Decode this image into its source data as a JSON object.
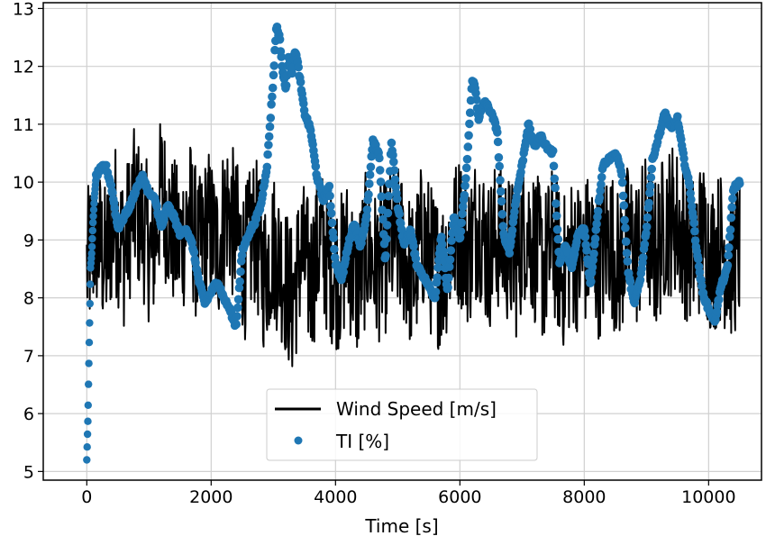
{
  "chart_data": {
    "type": "line",
    "title": "",
    "xlabel": "Time [s]",
    "ylabel": "",
    "xlim": [
      -700,
      10850
    ],
    "ylim": [
      4.85,
      13.1
    ],
    "xticks": [
      0,
      2000,
      4000,
      6000,
      8000,
      10000
    ],
    "yticks": [
      5,
      6,
      7,
      8,
      9,
      10,
      11,
      12,
      13
    ],
    "grid": true,
    "legend_position": "bottom-center",
    "series": [
      {
        "name": "Wind Speed [m/s]",
        "kind": "line",
        "color": "#000000",
        "x": [
          0,
          150,
          300,
          450,
          600,
          750,
          900,
          1050,
          1200,
          1350,
          1500,
          1650,
          1800,
          1950,
          2100,
          2250,
          2400,
          2550,
          2700,
          2850,
          3000,
          3150,
          3300,
          3450,
          3600,
          3750,
          3900,
          4050,
          4200,
          4350,
          4500,
          4650,
          4800,
          4950,
          5100,
          5250,
          5400,
          5550,
          5700,
          5850,
          6000,
          6150,
          6300,
          6450,
          6600,
          6750,
          6900,
          7050,
          7200,
          7350,
          7500,
          7650,
          7800,
          7950,
          8100,
          8250,
          8400,
          8550,
          8700,
          8850,
          9000,
          9150,
          9300,
          9450,
          9600,
          9750,
          9900,
          10050,
          10200,
          10350,
          10500
        ],
        "y": [
          8.5,
          9.1,
          8.6,
          9.4,
          8.8,
          9.6,
          9.3,
          8.7,
          9.9,
          9.2,
          8.9,
          9.5,
          8.7,
          9.3,
          8.8,
          9.6,
          9.1,
          8.6,
          9.2,
          8.4,
          8.9,
          8.5,
          7.9,
          8.8,
          8.3,
          9.0,
          8.6,
          8.4,
          8.8,
          8.2,
          8.9,
          8.5,
          8.7,
          9.0,
          8.8,
          8.3,
          9.1,
          8.6,
          8.4,
          8.9,
          9.2,
          8.8,
          9.4,
          8.7,
          9.1,
          8.9,
          8.6,
          9.3,
          8.9,
          8.5,
          9.0,
          8.4,
          8.8,
          8.7,
          8.9,
          8.6,
          9.1,
          8.5,
          9.0,
          8.8,
          9.2,
          8.7,
          9.3,
          9.4,
          9.0,
          8.8,
          9.1,
          8.7,
          8.9,
          8.6,
          8.8
        ],
        "noise_amplitude": 1.35,
        "range": [
          5.95,
          12.3
        ]
      },
      {
        "name": "TI [%]",
        "kind": "scatter",
        "color": "#1f77b4",
        "x": [
          0,
          20,
          40,
          60,
          80,
          100,
          120,
          150,
          200,
          300,
          400,
          500,
          600,
          700,
          800,
          900,
          1000,
          1100,
          1200,
          1300,
          1400,
          1500,
          1600,
          1700,
          1800,
          1900,
          2000,
          2100,
          2200,
          2300,
          2400,
          2500,
          2600,
          2700,
          2800,
          2900,
          3000,
          3050,
          3100,
          3150,
          3200,
          3250,
          3300,
          3350,
          3400,
          3500,
          3600,
          3700,
          3800,
          3900,
          4000,
          4100,
          4200,
          4300,
          4400,
          4500,
          4600,
          4700,
          4800,
          4900,
          5000,
          5100,
          5200,
          5300,
          5400,
          5500,
          5600,
          5700,
          5800,
          5900,
          6000,
          6100,
          6200,
          6250,
          6300,
          6400,
          6500,
          6600,
          6700,
          6800,
          6900,
          7000,
          7100,
          7200,
          7300,
          7400,
          7500,
          7600,
          7700,
          7800,
          7900,
          8000,
          8100,
          8200,
          8300,
          8400,
          8500,
          8600,
          8700,
          8800,
          8900,
          9000,
          9100,
          9200,
          9300,
          9400,
          9500,
          9600,
          9700,
          9800,
          9900,
          10000,
          10100,
          10200,
          10300,
          10400,
          10500
        ],
        "y": [
          5.2,
          6.0,
          7.3,
          8.5,
          8.8,
          9.3,
          9.7,
          10.1,
          10.2,
          10.3,
          9.9,
          9.2,
          9.4,
          9.6,
          9.9,
          10.1,
          9.8,
          9.7,
          9.2,
          9.6,
          9.4,
          9.1,
          9.2,
          8.9,
          8.3,
          7.9,
          8.1,
          8.3,
          8.0,
          7.8,
          7.5,
          8.8,
          9.1,
          9.3,
          9.6,
          10.3,
          11.8,
          12.7,
          12.5,
          11.9,
          11.6,
          12.2,
          11.9,
          12.3,
          12.0,
          11.2,
          10.9,
          10.1,
          9.7,
          9.9,
          8.6,
          8.3,
          8.9,
          9.3,
          8.9,
          9.4,
          10.7,
          10.5,
          8.6,
          10.7,
          9.6,
          8.9,
          9.2,
          8.6,
          8.4,
          8.2,
          8.0,
          9.1,
          8.1,
          9.4,
          9.0,
          10.1,
          11.8,
          11.6,
          11.1,
          11.4,
          11.2,
          10.9,
          9.1,
          8.8,
          9.7,
          10.3,
          11.0,
          10.6,
          10.8,
          10.6,
          10.5,
          8.6,
          8.9,
          8.5,
          9.1,
          9.2,
          8.2,
          9.3,
          10.3,
          10.4,
          10.5,
          10.2,
          8.5,
          7.9,
          8.3,
          9.2,
          10.4,
          10.8,
          11.2,
          10.9,
          11.1,
          10.4,
          9.9,
          8.9,
          8.1,
          7.8,
          7.6,
          8.2,
          8.5,
          9.9,
          10.0
        ]
      }
    ]
  }
}
